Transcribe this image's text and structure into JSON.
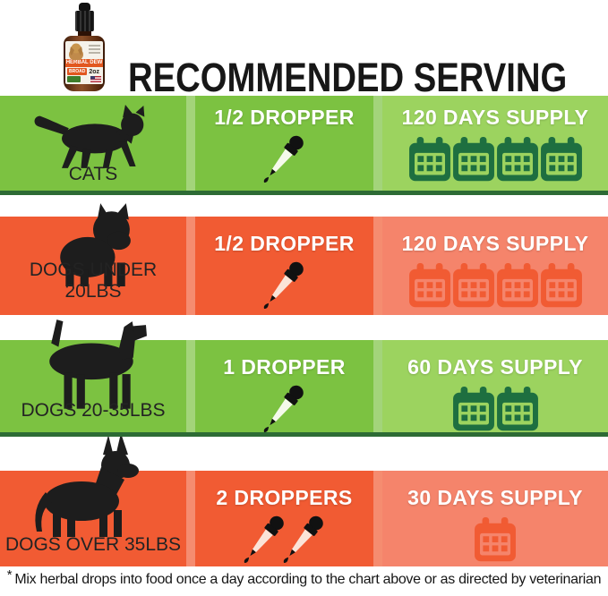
{
  "header": {
    "title": "RECOMMENDED SERVING",
    "bottle": {
      "brand": "HERBAL DEW",
      "badge": "BROAD",
      "size": "2oz"
    }
  },
  "rows": [
    {
      "animal_label": "CATS",
      "dose_label": "1/2 DROPPER",
      "dropper_count": 1,
      "supply_label": "120 DAYS SUPPLY",
      "calendar_count": 4
    },
    {
      "animal_label": "DOGS UNDER 20LBS",
      "dose_label": "1/2 DROPPER",
      "dropper_count": 1,
      "supply_label": "120 DAYS SUPPLY",
      "calendar_count": 4
    },
    {
      "animal_label": "DOGS 20-35LBS",
      "dose_label": "1 DROPPER",
      "dropper_count": 1,
      "supply_label": "60 DAYS SUPPLY",
      "calendar_count": 2
    },
    {
      "animal_label": "DOGS OVER 35LBS",
      "dose_label": "2 DROPPERS",
      "dropper_count": 2,
      "supply_label": "30 DAYS SUPPLY",
      "calendar_count": 1
    }
  ],
  "footnote": {
    "marker": "*",
    "text": "Mix herbal drops into food once a day according to the chart above or as directed by veterinarian"
  },
  "colors": {
    "green": "#7cc241",
    "green_light": "#9cd35f",
    "green_strip": "#2d6b35",
    "green_icon": "#1e6f40",
    "orange": "#f15b33",
    "orange_light": "#f5846b"
  }
}
